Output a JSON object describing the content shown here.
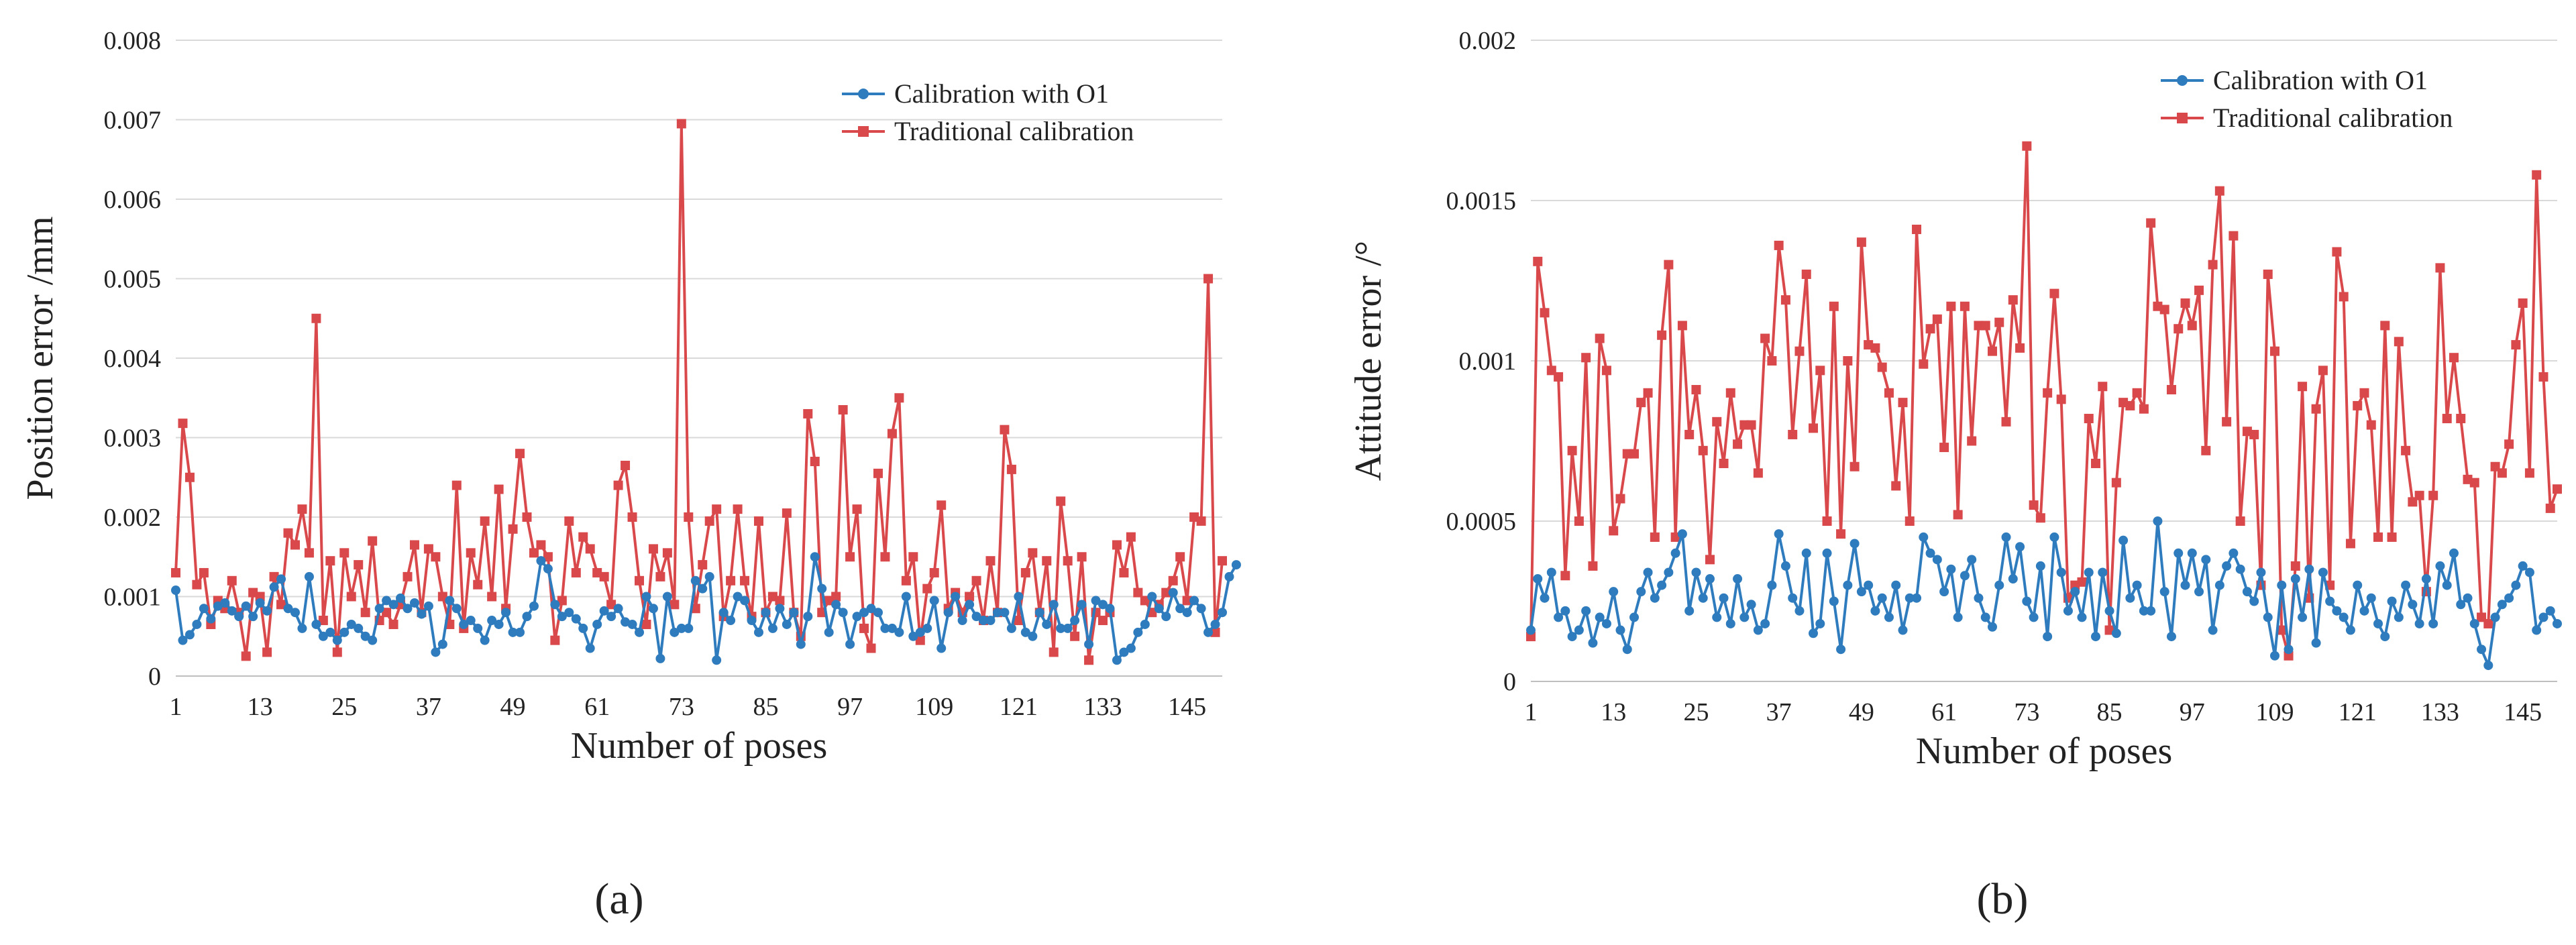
{
  "chart_data": [
    {
      "type": "line",
      "panel_label": "(a)",
      "xlabel": "Number of poses",
      "ylabel": "Position error /mm",
      "ylim": [
        0,
        0.008
      ],
      "yticks": [
        "0",
        "0.001",
        "0.002",
        "0.003",
        "0.004",
        "0.005",
        "0.006",
        "0.007",
        "0.008"
      ],
      "xticks": [
        1,
        13,
        25,
        37,
        49,
        61,
        73,
        85,
        97,
        109,
        121,
        133,
        145
      ],
      "xlim": [
        1,
        150
      ],
      "grid": "horizontal",
      "legend": "top-right",
      "series": [
        {
          "name": "Calibration with O1",
          "color": "#2E7BBD",
          "marker": "circle",
          "values": [
            0.00108,
            0.00045,
            0.00052,
            0.00065,
            0.00085,
            0.00072,
            0.00088,
            0.00092,
            0.00082,
            0.00075,
            0.00088,
            0.00075,
            0.00092,
            0.00082,
            0.00112,
            0.00122,
            0.00085,
            0.0008,
            0.0006,
            0.00125,
            0.00065,
            0.0005,
            0.00055,
            0.00045,
            0.00055,
            0.00065,
            0.0006,
            0.0005,
            0.00045,
            0.00085,
            0.00095,
            0.0009,
            0.00098,
            0.00085,
            0.00092,
            0.00078,
            0.00088,
            0.0003,
            0.0004,
            0.00095,
            0.00085,
            0.00065,
            0.0007,
            0.0006,
            0.00045,
            0.0007,
            0.00065,
            0.0008,
            0.00055,
            0.00055,
            0.00075,
            0.00088,
            0.00145,
            0.00135,
            0.0009,
            0.00075,
            0.0008,
            0.00072,
            0.0006,
            0.00035,
            0.00065,
            0.00082,
            0.00075,
            0.00085,
            0.00068,
            0.00065,
            0.00055,
            0.001,
            0.00085,
            0.00022,
            0.001,
            0.00055,
            0.0006,
            0.0006,
            0.0012,
            0.0011,
            0.00125,
            0.0002,
            0.0008,
            0.0007,
            0.001,
            0.00095,
            0.0007,
            0.00055,
            0.0008,
            0.0006,
            0.00085,
            0.00065,
            0.0008,
            0.0004,
            0.00075,
            0.0015,
            0.0011,
            0.00055,
            0.0009,
            0.0008,
            0.0004,
            0.00075,
            0.0008,
            0.00085,
            0.0008,
            0.0006,
            0.0006,
            0.00055,
            0.001,
            0.0005,
            0.00055,
            0.0006,
            0.00095,
            0.00035,
            0.0008,
            0.001,
            0.0007,
            0.0009,
            0.00075,
            0.0007,
            0.0007,
            0.0008,
            0.0008,
            0.0006,
            0.001,
            0.00055,
            0.0005,
            0.0008,
            0.00065,
            0.0009,
            0.0006,
            0.0006,
            0.0007,
            0.0009,
            0.0004,
            0.00095,
            0.0009,
            0.00085,
            0.0002,
            0.0003,
            0.00035,
            0.00055,
            0.00065,
            0.001,
            0.00085,
            0.00075,
            0.00105,
            0.00085,
            0.0008,
            0.00095,
            0.00085,
            0.00055,
            0.00065,
            0.0008,
            0.00125,
            0.0014
          ]
        },
        {
          "name": "Traditional calibration",
          "color": "#D9484A",
          "marker": "square",
          "values": [
            0.0013,
            0.00318,
            0.0025,
            0.00115,
            0.0013,
            0.00065,
            0.00095,
            0.00085,
            0.0012,
            0.0008,
            0.00025,
            0.00105,
            0.001,
            0.0003,
            0.00125,
            0.0009,
            0.0018,
            0.00165,
            0.0021,
            0.00155,
            0.0045,
            0.0007,
            0.00145,
            0.0003,
            0.00155,
            0.001,
            0.0014,
            0.0008,
            0.0017,
            0.0007,
            0.0008,
            0.00065,
            0.0009,
            0.00125,
            0.00165,
            0.0008,
            0.0016,
            0.0015,
            0.001,
            0.00065,
            0.0024,
            0.0006,
            0.00155,
            0.00115,
            0.00195,
            0.001,
            0.00235,
            0.00085,
            0.00185,
            0.0028,
            0.002,
            0.00155,
            0.00165,
            0.0015,
            0.00045,
            0.00095,
            0.00195,
            0.0013,
            0.00175,
            0.0016,
            0.0013,
            0.00125,
            0.0009,
            0.0024,
            0.00265,
            0.002,
            0.0012,
            0.00065,
            0.0016,
            0.00125,
            0.00155,
            0.0009,
            0.00695,
            0.002,
            0.00085,
            0.0014,
            0.00195,
            0.0021,
            0.00075,
            0.0012,
            0.0021,
            0.0012,
            0.00075,
            0.00195,
            0.0008,
            0.001,
            0.00095,
            0.00205,
            0.0008,
            0.0005,
            0.0033,
            0.0027,
            0.0008,
            0.00095,
            0.001,
            0.00335,
            0.0015,
            0.0021,
            0.0006,
            0.00035,
            0.00255,
            0.0015,
            0.00305,
            0.0035,
            0.0012,
            0.0015,
            0.00045,
            0.0011,
            0.0013,
            0.00215,
            0.00085,
            0.00105,
            0.0008,
            0.001,
            0.0012,
            0.0007,
            0.00145,
            0.0008,
            0.0031,
            0.0026,
            0.0007,
            0.0013,
            0.00155,
            0.0008,
            0.00145,
            0.0003,
            0.0022,
            0.00145,
            0.0005,
            0.0015,
            0.0002,
            0.0008,
            0.0007,
            0.0008,
            0.00165,
            0.0013,
            0.00175,
            0.00105,
            0.00095,
            0.0008,
            0.0009,
            0.00105,
            0.0012,
            0.0015,
            0.00095,
            0.002,
            0.00195,
            0.005,
            0.00055,
            0.00145
          ]
        }
      ]
    },
    {
      "type": "line",
      "panel_label": "(b)",
      "xlabel": "Number of poses",
      "ylabel": "Attitude error /°",
      "ylim": [
        0,
        0.002
      ],
      "yticks": [
        "0",
        "0.0005",
        "0.001",
        "0.0015",
        "0.002"
      ],
      "xticks": [
        1,
        13,
        25,
        37,
        49,
        61,
        73,
        85,
        97,
        109,
        121,
        133,
        145
      ],
      "xlim": [
        1,
        150
      ],
      "grid": "horizontal",
      "legend": "top-right",
      "series": [
        {
          "name": "Calibration with O1",
          "color": "#2E7BBD",
          "marker": "circle",
          "values": [
            0.00016,
            0.00032,
            0.00026,
            0.00034,
            0.0002,
            0.00022,
            0.00014,
            0.00016,
            0.00022,
            0.00012,
            0.0002,
            0.00018,
            0.00028,
            0.00016,
            0.0001,
            0.0002,
            0.00028,
            0.00034,
            0.00026,
            0.0003,
            0.00034,
            0.0004,
            0.00046,
            0.00022,
            0.00034,
            0.00026,
            0.00032,
            0.0002,
            0.00026,
            0.00018,
            0.00032,
            0.0002,
            0.00024,
            0.00016,
            0.00018,
            0.0003,
            0.00046,
            0.00036,
            0.00026,
            0.00022,
            0.0004,
            0.00015,
            0.00018,
            0.0004,
            0.00025,
            0.0001,
            0.0003,
            0.00043,
            0.00028,
            0.0003,
            0.00022,
            0.00026,
            0.0002,
            0.0003,
            0.00016,
            0.00026,
            0.00026,
            0.00045,
            0.0004,
            0.00038,
            0.00028,
            0.00035,
            0.0002,
            0.00033,
            0.00038,
            0.00026,
            0.0002,
            0.00017,
            0.0003,
            0.00045,
            0.00032,
            0.00042,
            0.00025,
            0.0002,
            0.00036,
            0.00014,
            0.00045,
            0.00034,
            0.00022,
            0.00028,
            0.0002,
            0.00034,
            0.00014,
            0.00034,
            0.00022,
            0.00015,
            0.00044,
            0.00026,
            0.0003,
            0.00022,
            0.00022,
            0.0005,
            0.00028,
            0.00014,
            0.0004,
            0.0003,
            0.0004,
            0.00028,
            0.00038,
            0.00016,
            0.0003,
            0.00036,
            0.0004,
            0.00035,
            0.00028,
            0.00025,
            0.00034,
            0.0002,
            8e-05,
            0.0003,
            0.0001,
            0.00032,
            0.0002,
            0.00035,
            0.00012,
            0.00034,
            0.00025,
            0.00022,
            0.0002,
            0.00016,
            0.0003,
            0.00022,
            0.00026,
            0.00018,
            0.00014,
            0.00025,
            0.0002,
            0.0003,
            0.00024,
            0.00018,
            0.00032,
            0.00018,
            0.00036,
            0.0003,
            0.0004,
            0.00024,
            0.00026,
            0.00018,
            0.0001,
            5e-05,
            0.0002,
            0.00024,
            0.00026,
            0.0003,
            0.00036,
            0.00034,
            0.00016,
            0.0002,
            0.00022,
            0.00018
          ]
        },
        {
          "name": "Traditional calibration",
          "color": "#D9484A",
          "marker": "square",
          "values": [
            0.00014,
            0.00131,
            0.00115,
            0.00097,
            0.00095,
            0.00033,
            0.00072,
            0.0005,
            0.00101,
            0.00036,
            0.00107,
            0.00097,
            0.00047,
            0.00057,
            0.00071,
            0.00071,
            0.00087,
            0.0009,
            0.00045,
            0.00108,
            0.0013,
            0.00045,
            0.00111,
            0.00077,
            0.00091,
            0.00072,
            0.00038,
            0.00081,
            0.00068,
            0.0009,
            0.00074,
            0.0008,
            0.0008,
            0.00065,
            0.00107,
            0.001,
            0.00136,
            0.00119,
            0.00077,
            0.00103,
            0.00127,
            0.00079,
            0.00097,
            0.0005,
            0.00117,
            0.00046,
            0.001,
            0.00067,
            0.00137,
            0.00105,
            0.00104,
            0.00098,
            0.0009,
            0.00061,
            0.00087,
            0.0005,
            0.00141,
            0.00099,
            0.0011,
            0.00113,
            0.00073,
            0.00117,
            0.00052,
            0.00117,
            0.00075,
            0.00111,
            0.00111,
            0.00103,
            0.00112,
            0.00081,
            0.00119,
            0.00104,
            0.00167,
            0.00055,
            0.00051,
            0.0009,
            0.00121,
            0.00088,
            0.00026,
            0.0003,
            0.00031,
            0.00082,
            0.00068,
            0.00092,
            0.00016,
            0.00062,
            0.00087,
            0.00086,
            0.0009,
            0.00085,
            0.00143,
            0.00117,
            0.00116,
            0.00091,
            0.0011,
            0.00118,
            0.00111,
            0.00122,
            0.00072,
            0.0013,
            0.00153,
            0.00081,
            0.00139,
            0.0005,
            0.00078,
            0.00077,
            0.0003,
            0.00127,
            0.00103,
            0.00016,
            8e-05,
            0.00036,
            0.00092,
            0.00026,
            0.00085,
            0.00097,
            0.0003,
            0.00134,
            0.0012,
            0.00043,
            0.00086,
            0.0009,
            0.0008,
            0.00045,
            0.00111,
            0.00045,
            0.00106,
            0.00072,
            0.00056,
            0.00058,
            0.00028,
            0.00058,
            0.00129,
            0.00082,
            0.00101,
            0.00082,
            0.00063,
            0.00062,
            0.0002,
            0.00018,
            0.00067,
            0.00065,
            0.00074,
            0.00105,
            0.00118,
            0.00065,
            0.00158,
            0.00095,
            0.00054,
            0.0006
          ]
        }
      ]
    }
  ]
}
